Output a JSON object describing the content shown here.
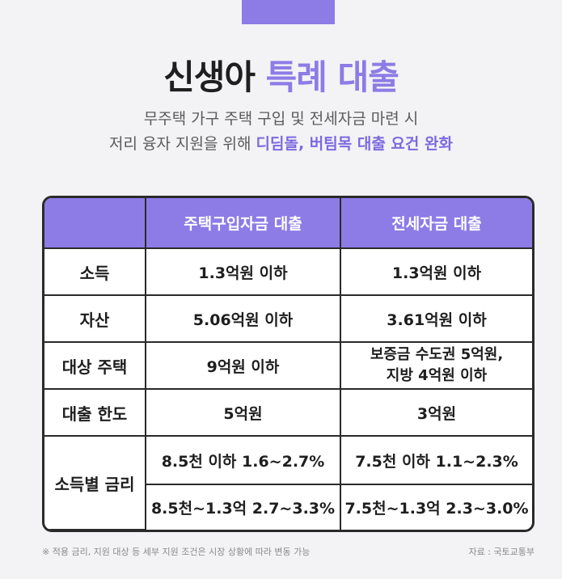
{
  "title": {
    "main": "신생아",
    "accent": "특례 대출"
  },
  "subtitle": {
    "line1": "무주택 가구 주택 구입 및 전세자금 마련 시",
    "line2_plain": "저리 융자 지원을 위해 ",
    "line2_highlight": "디딤돌, 버팀목 대출 요건 완화"
  },
  "table": {
    "headers": [
      "",
      "주택구입자금 대출",
      "전세자금 대출"
    ],
    "rows": [
      {
        "label": "소득",
        "purchase": "1.3억원 이하",
        "jeonse": "1.3억원 이하"
      },
      {
        "label": "자산",
        "purchase": "5.06억원 이하",
        "jeonse": "3.61억원 이하"
      },
      {
        "label": "대상 주택",
        "purchase": "9억원 이하",
        "jeonse_line1": "보증금 수도권 5억원,",
        "jeonse_line2": "지방 4억원 이하"
      },
      {
        "label": "대출 한도",
        "purchase": "5억원",
        "jeonse": "3억원"
      }
    ],
    "rate": {
      "label": "소득별 금리",
      "purchase": [
        "8.5천 이하 1.6~2.7%",
        "8.5천~1.3억 2.7~3.3%"
      ],
      "jeonse": [
        "7.5천 이하 1.1~2.3%",
        "7.5천~1.3억 2.3~3.0%"
      ]
    }
  },
  "footnote": "※ 적용 금리, 지원 대상 등 세부 지원 조건은 시장 상황에 따라 변동 가능",
  "source": "자료 : 국토교통부",
  "colors": {
    "accent": "#8d7be6",
    "background": "#f3f3f5",
    "border": "#2a2a2a"
  }
}
